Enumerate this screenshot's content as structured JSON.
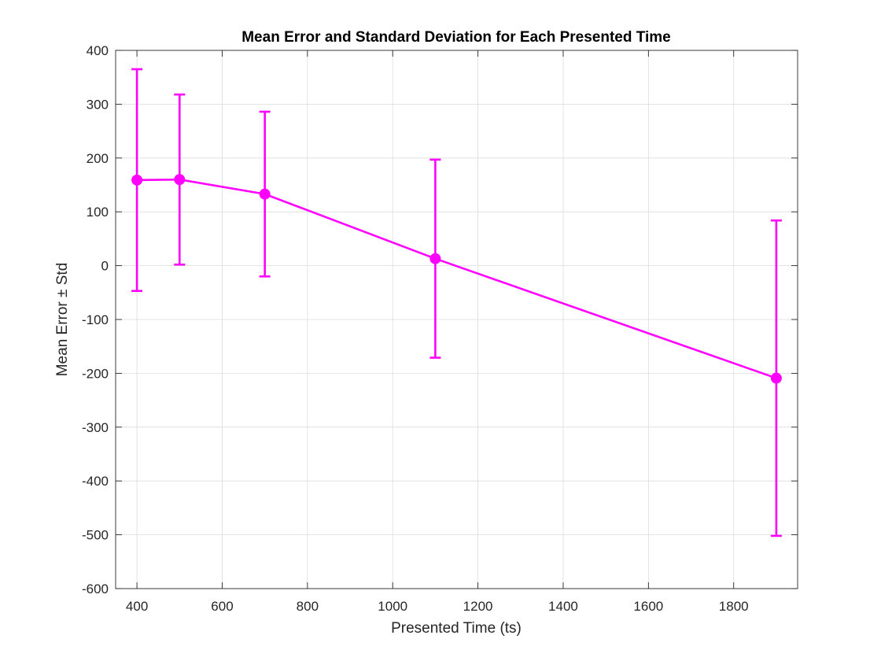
{
  "chart_data": {
    "type": "line",
    "title": "Mean Error and Standard Deviation for Each Presented Time",
    "xlabel": "Presented Time (ts)",
    "ylabel": "Mean Error ± Std",
    "xlim": [
      350,
      1950
    ],
    "ylim": [
      -600,
      400
    ],
    "xticks": [
      400,
      600,
      800,
      1000,
      1200,
      1400,
      1600,
      1800
    ],
    "yticks": [
      -600,
      -500,
      -400,
      -300,
      -200,
      -100,
      0,
      100,
      200,
      300,
      400
    ],
    "grid": true,
    "color": "#ff00ff",
    "series": [
      {
        "x": [
          400,
          500,
          700,
          1100,
          1900
        ],
        "y": [
          159,
          160,
          133,
          13,
          -209
        ],
        "err": [
          206,
          158,
          153,
          184,
          293
        ]
      }
    ]
  }
}
